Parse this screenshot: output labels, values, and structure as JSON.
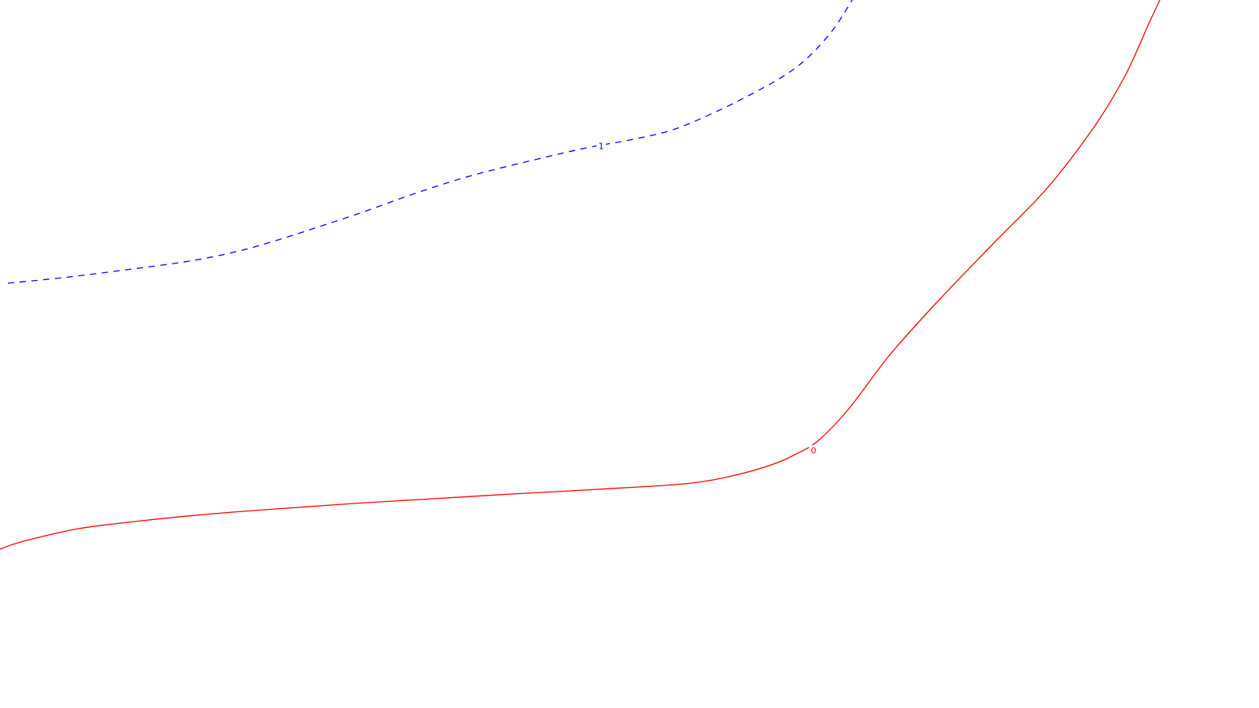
{
  "chart_data": {
    "type": "line",
    "series": [
      {
        "level_label": "0",
        "color": "#ff0000",
        "dash": "solid",
        "points": [
          [
            0,
            698
          ],
          [
            30,
            688
          ],
          [
            100,
            672
          ],
          [
            180,
            662
          ],
          [
            260,
            654
          ],
          [
            350,
            647
          ],
          [
            450,
            640
          ],
          [
            550,
            634
          ],
          [
            650,
            628
          ],
          [
            760,
            622
          ],
          [
            870,
            615
          ],
          [
            930,
            605
          ],
          [
            980,
            591
          ],
          [
            1010,
            578
          ],
          [
            1040,
            560
          ],
          [
            1080,
            518
          ],
          [
            1130,
            452
          ],
          [
            1190,
            385
          ],
          [
            1260,
            312
          ],
          [
            1330,
            240
          ],
          [
            1390,
            162
          ],
          [
            1430,
            96
          ],
          [
            1460,
            30
          ],
          [
            1474,
            0
          ]
        ],
        "label_position": [
          1034,
          573
        ]
      },
      {
        "level_label": "1",
        "color": "#0000ff",
        "dash": "dashed",
        "points": [
          [
            10,
            360
          ],
          [
            80,
            353
          ],
          [
            160,
            343
          ],
          [
            240,
            332
          ],
          [
            300,
            320
          ],
          [
            350,
            306
          ],
          [
            400,
            290
          ],
          [
            460,
            270
          ],
          [
            530,
            245
          ],
          [
            600,
            223
          ],
          [
            680,
            203
          ],
          [
            745,
            188
          ],
          [
            800,
            178
          ],
          [
            855,
            165
          ],
          [
            910,
            142
          ],
          [
            960,
            117
          ],
          [
            1000,
            94
          ],
          [
            1030,
            70
          ],
          [
            1060,
            36
          ],
          [
            1083,
            0
          ]
        ],
        "label_position": [
          764,
          186
        ]
      }
    ]
  }
}
